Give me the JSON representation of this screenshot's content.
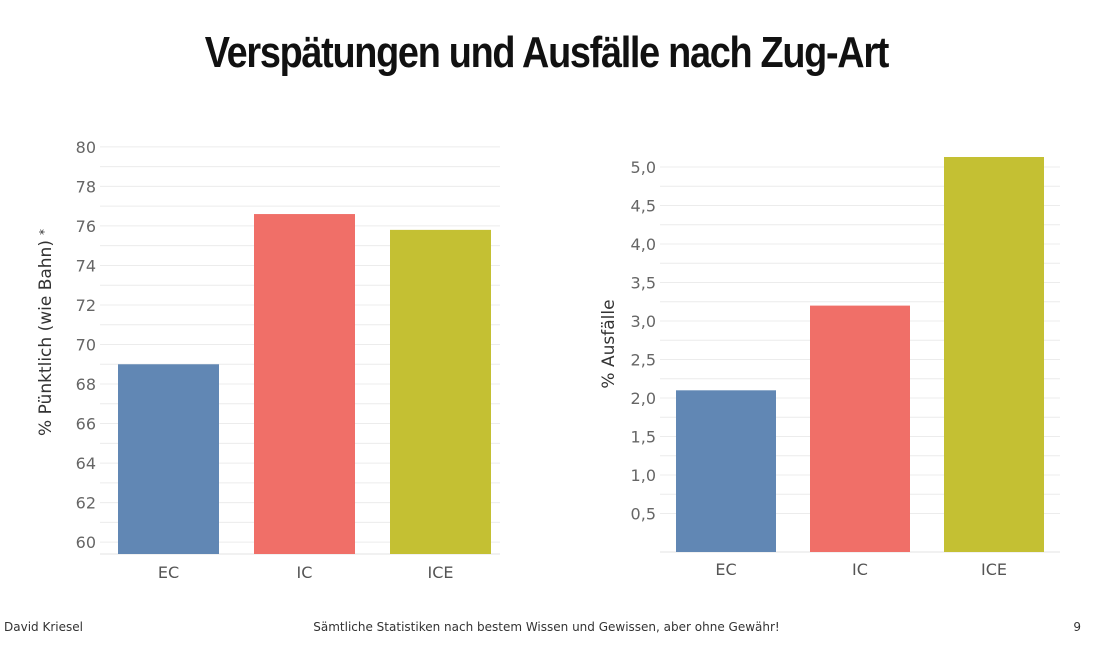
{
  "page": {
    "title": "Verspätungen und Ausfälle nach Zug-Art",
    "footer_author": "David Kriesel",
    "footer_note": "Sämtliche Statistiken nach bestem Wissen und Gewissen, aber ohne Gewähr!",
    "page_number": "9"
  },
  "chart_data": [
    {
      "type": "bar",
      "categories": [
        "EC",
        "IC",
        "ICE"
      ],
      "values": [
        69.0,
        76.6,
        75.8
      ],
      "ylabel": "% Pünktlich (wie Bahn)",
      "ylabel_mark": "*",
      "ylim": [
        59.4,
        80.6
      ],
      "yticks": [
        "60",
        "62",
        "64",
        "66",
        "68",
        "70",
        "72",
        "74",
        "76",
        "78",
        "80"
      ],
      "colors": [
        "#6187b4",
        "#f06f68",
        "#c4c033"
      ],
      "grid": true
    },
    {
      "type": "bar",
      "categories": [
        "EC",
        "IC",
        "ICE"
      ],
      "values": [
        2.1,
        3.2,
        5.13
      ],
      "ylabel": "% Ausfälle",
      "ylim": [
        0,
        5.13
      ],
      "yticks": [
        "0,5",
        "1,0",
        "1,5",
        "2,0",
        "2,5",
        "3,0",
        "3,5",
        "4,0",
        "4,5",
        "5,0"
      ],
      "colors": [
        "#6187b4",
        "#f06f68",
        "#c4c033"
      ],
      "grid": true
    }
  ]
}
